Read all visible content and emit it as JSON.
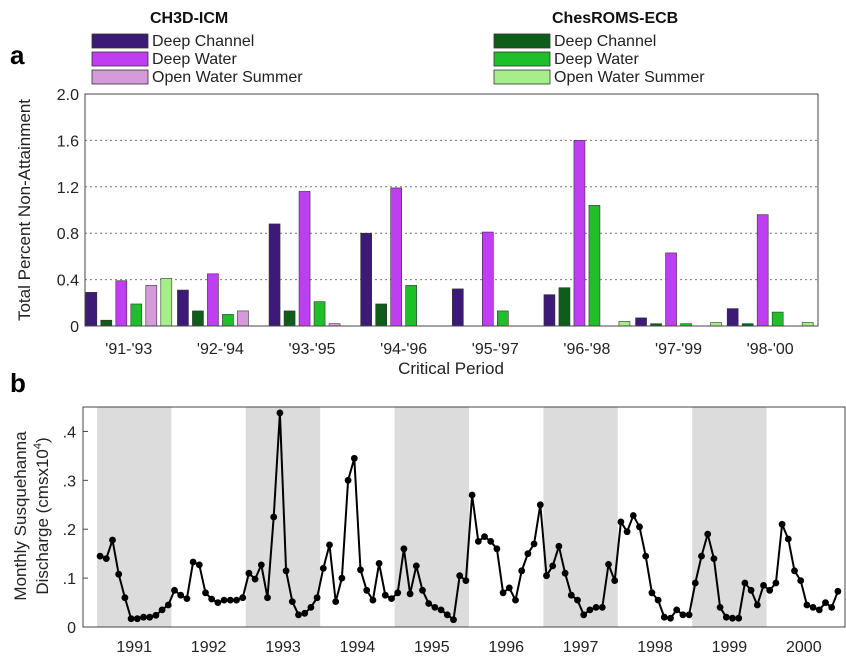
{
  "panels": {
    "a": "a",
    "b": "b"
  },
  "chart_data": [
    {
      "type": "bar",
      "ylabel": "Total Percent Non-Attainment",
      "xlabel": "Critical Period",
      "ylim": [
        0,
        2.0
      ],
      "yticks": [
        "0",
        "0.4",
        "0.8",
        "1.2",
        "1.6",
        "2.0"
      ],
      "grid": "horizontal dotted",
      "legend_position": "top",
      "categories": [
        "'91-'93",
        "'92-'94",
        "'93-'95",
        "'94-'96",
        "'95-'97",
        "'96-'98",
        "'97-'99",
        "'98-'00"
      ],
      "legend_groups": [
        {
          "title": "CH3D-ICM",
          "entries": [
            "Deep Channel",
            "Deep Water",
            "Open Water Summer"
          ]
        },
        {
          "title": "ChesROMS-ECB",
          "entries": [
            "Deep Channel",
            "Deep Water",
            "Open Water Summer"
          ]
        }
      ],
      "series": [
        {
          "group": "CH3D-ICM",
          "name": "Deep Channel",
          "color": "#3d1a78",
          "values": [
            0.29,
            0.31,
            0.88,
            0.8,
            0.32,
            0.27,
            0.07,
            0.15
          ]
        },
        {
          "group": "ChesROMS-ECB",
          "name": "Deep Channel",
          "color": "#0e5e1a",
          "values": [
            0.05,
            0.13,
            0.13,
            0.19,
            0.0,
            0.33,
            0.02,
            0.02
          ]
        },
        {
          "group": "CH3D-ICM",
          "name": "Deep Water",
          "color": "#bf3ef2",
          "values": [
            0.39,
            0.45,
            1.16,
            1.19,
            0.81,
            1.6,
            0.63,
            0.96
          ]
        },
        {
          "group": "ChesROMS-ECB",
          "name": "Deep Water",
          "color": "#1fbf2a",
          "values": [
            0.19,
            0.1,
            0.21,
            0.35,
            0.13,
            1.04,
            0.02,
            0.12
          ]
        },
        {
          "group": "CH3D-ICM",
          "name": "Open Water Summer",
          "color": "#d49ad9",
          "values": [
            0.35,
            0.13,
            0.02,
            0.0,
            0.0,
            0.0,
            0.0,
            0.0
          ]
        },
        {
          "group": "ChesROMS-ECB",
          "name": "Open Water Summer",
          "color": "#a6ee8a",
          "values": [
            0.41,
            0.0,
            0.0,
            0.0,
            0.0,
            0.04,
            0.03,
            0.03
          ]
        }
      ]
    },
    {
      "type": "line",
      "ylabel_line1": "Monthly Susquehanna",
      "ylabel_line2": "Discharge (cmsx10",
      "ylabel_sup": "4",
      "ylabel_close": ")",
      "ylim": [
        0,
        0.45
      ],
      "yticks": [
        ".4",
        ".3",
        ".2",
        ".1",
        "0"
      ],
      "x_labels": [
        "1991",
        "1992",
        "1993",
        "1994",
        "1995",
        "1996",
        "1997",
        "1998",
        "1999",
        "2000"
      ],
      "shaded_years": [
        "1991",
        "1993",
        "1995",
        "1997",
        "1999"
      ],
      "series": [
        {
          "name": "",
          "color": "#000000",
          "x_start": "1991-01",
          "values": [
            0.145,
            0.14,
            0.178,
            0.108,
            0.06,
            0.017,
            0.017,
            0.02,
            0.02,
            0.024,
            0.035,
            0.045,
            0.075,
            0.065,
            0.058,
            0.133,
            0.127,
            0.07,
            0.057,
            0.05,
            0.055,
            0.055,
            0.055,
            0.06,
            0.11,
            0.098,
            0.127,
            0.06,
            0.225,
            0.438,
            0.115,
            0.052,
            0.025,
            0.028,
            0.04,
            0.06,
            0.12,
            0.168,
            0.052,
            0.1,
            0.3,
            0.345,
            0.117,
            0.075,
            0.055,
            0.13,
            0.065,
            0.058,
            0.07,
            0.16,
            0.068,
            0.125,
            0.075,
            0.048,
            0.04,
            0.035,
            0.025,
            0.015,
            0.105,
            0.095,
            0.27,
            0.175,
            0.185,
            0.175,
            0.16,
            0.07,
            0.08,
            0.055,
            0.115,
            0.15,
            0.17,
            0.25,
            0.105,
            0.125,
            0.165,
            0.11,
            0.065,
            0.055,
            0.025,
            0.035,
            0.04,
            0.04,
            0.128,
            0.095,
            0.215,
            0.195,
            0.228,
            0.205,
            0.145,
            0.07,
            0.055,
            0.02,
            0.018,
            0.035,
            0.025,
            0.025,
            0.09,
            0.145,
            0.19,
            0.14,
            0.04,
            0.02,
            0.018,
            0.018,
            0.09,
            0.075,
            0.045,
            0.085,
            0.075,
            0.09,
            0.21,
            0.18,
            0.115,
            0.095,
            0.045,
            0.04,
            0.035,
            0.05,
            0.04,
            0.073
          ]
        }
      ]
    }
  ]
}
